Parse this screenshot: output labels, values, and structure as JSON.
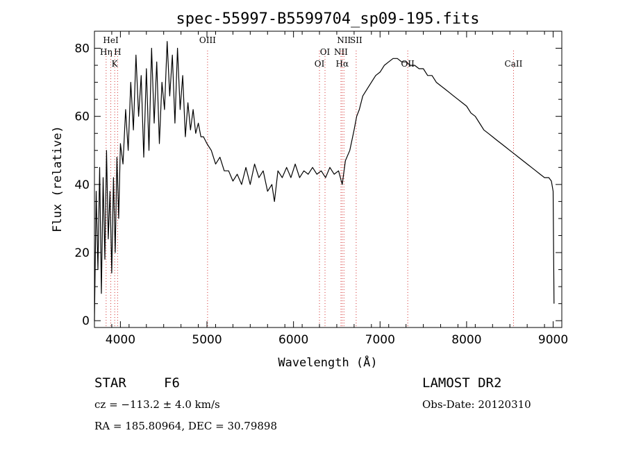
{
  "chart_data": {
    "type": "line",
    "title": "spec-55997-B5599704_sp09-195.fits",
    "xlabel": "Wavelength (Å)",
    "ylabel": "Flux (relative)",
    "xlim": [
      3700,
      9100
    ],
    "ylim": [
      -2,
      85
    ],
    "x_ticks": [
      4000,
      5000,
      6000,
      7000,
      8000,
      9000
    ],
    "y_ticks": [
      0,
      20,
      40,
      60,
      80
    ],
    "grid": false,
    "series": [
      {
        "x": [
          3700,
          3720,
          3740,
          3760,
          3780,
          3800,
          3820,
          3840,
          3860,
          3880,
          3900,
          3920,
          3940,
          3960,
          3980,
          4000,
          4030,
          4060,
          4090,
          4120,
          4150,
          4180,
          4210,
          4240,
          4270,
          4300,
          4330,
          4360,
          4390,
          4420,
          4450,
          4480,
          4510,
          4540,
          4570,
          4600,
          4630,
          4660,
          4690,
          4720,
          4750,
          4780,
          4810,
          4840,
          4870,
          4900,
          4930,
          4960,
          5000,
          5050,
          5100,
          5150,
          5200,
          5250,
          5300,
          5350,
          5400,
          5450,
          5500,
          5550,
          5600,
          5650,
          5700,
          5750,
          5780,
          5820,
          5870,
          5920,
          5970,
          6020,
          6070,
          6120,
          6170,
          6220,
          6270,
          6320,
          6370,
          6420,
          6470,
          6520,
          6563,
          6600,
          6650,
          6700,
          6730,
          6760,
          6800,
          6850,
          6900,
          6950,
          7000,
          7050,
          7100,
          7150,
          7200,
          7250,
          7300,
          7350,
          7400,
          7450,
          7500,
          7550,
          7600,
          7650,
          7700,
          7750,
          7800,
          7850,
          7900,
          7950,
          8000,
          8050,
          8100,
          8150,
          8200,
          8250,
          8300,
          8350,
          8400,
          8450,
          8500,
          8550,
          8600,
          8650,
          8700,
          8750,
          8800,
          8850,
          8900,
          8950,
          8980,
          9000,
          9010
        ],
        "values": [
          0,
          38,
          15,
          45,
          8,
          42,
          18,
          50,
          24,
          38,
          14,
          42,
          20,
          48,
          30,
          52,
          46,
          62,
          50,
          70,
          56,
          78,
          60,
          72,
          48,
          74,
          50,
          80,
          58,
          76,
          52,
          70,
          62,
          82,
          66,
          78,
          58,
          80,
          62,
          72,
          54,
          64,
          56,
          62,
          55,
          58,
          54,
          54,
          52,
          50,
          46,
          48,
          44,
          44,
          41,
          43,
          40,
          45,
          40,
          46,
          42,
          44,
          38,
          40,
          35,
          44,
          42,
          45,
          42,
          46,
          42,
          44,
          43,
          45,
          43,
          44,
          42,
          45,
          43,
          44,
          40,
          47,
          50,
          56,
          60,
          62,
          66,
          68,
          70,
          72,
          73,
          75,
          76,
          77,
          77,
          76,
          76,
          75,
          75,
          74,
          74,
          72,
          72,
          70,
          69,
          68,
          67,
          66,
          65,
          64,
          63,
          61,
          60,
          58,
          56,
          55,
          54,
          53,
          52,
          51,
          50,
          49,
          48,
          47,
          46,
          45,
          44,
          43,
          42,
          42,
          41,
          38,
          5
        ]
      }
    ],
    "emission_lines": [
      {
        "label": "HeI",
        "x": 3889,
        "row": 0
      },
      {
        "label": "Hη",
        "x": 3835,
        "row": 1
      },
      {
        "label": "H",
        "x": 3968,
        "row": 1
      },
      {
        "label": "K",
        "x": 3934,
        "row": 2
      },
      {
        "label": "OIII",
        "x": 5007,
        "row": 0
      },
      {
        "label": "OI",
        "x": 6364,
        "row": 1
      },
      {
        "label": "OI",
        "x": 6300,
        "row": 2
      },
      {
        "label": "NII",
        "x": 6583,
        "row": 0
      },
      {
        "label": "NII",
        "x": 6548,
        "row": 1
      },
      {
        "label": "Hα",
        "x": 6563,
        "row": 2
      },
      {
        "label": "SII",
        "x": 6724,
        "row": 0
      },
      {
        "label": "OII",
        "x": 7320,
        "row": 2
      },
      {
        "label": "CaII",
        "x": 8542,
        "row": 2
      }
    ]
  },
  "info": {
    "class_label": "STAR",
    "subclass": "F6",
    "cz": "cz = −113.2 ± 4.0 km/s",
    "coords": "RA = 185.80964, DEC =  30.79898",
    "survey": "LAMOST DR2",
    "obs_date": "Obs-Date: 20120310"
  }
}
